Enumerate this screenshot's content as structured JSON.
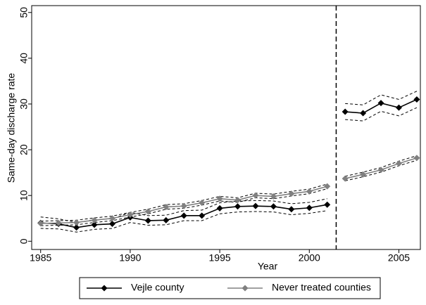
{
  "chart_data": {
    "type": "line",
    "xlabel": "Year",
    "ylabel": "Same-day discharge rate",
    "x": [
      1985,
      1986,
      1987,
      1988,
      1989,
      1990,
      1991,
      1992,
      1993,
      1994,
      1995,
      1996,
      1997,
      1998,
      1999,
      2000,
      2001,
      2002,
      2003,
      2004,
      2005,
      2006
    ],
    "series": [
      {
        "name": "Vejle county",
        "color": "#000000",
        "ci_color": "#000000",
        "values": [
          4.0,
          3.8,
          3.0,
          3.6,
          3.8,
          5.2,
          4.5,
          4.6,
          5.6,
          5.6,
          7.2,
          7.6,
          7.7,
          7.6,
          7.0,
          7.3,
          8.0,
          28.3,
          28.0,
          30.2,
          29.2,
          31.0
        ],
        "lower": [
          2.8,
          2.7,
          2.0,
          2.6,
          2.8,
          4.1,
          3.5,
          3.6,
          4.5,
          4.5,
          6.0,
          6.4,
          6.5,
          6.4,
          5.8,
          6.1,
          6.7,
          26.6,
          26.3,
          28.4,
          27.4,
          29.2
        ],
        "upper": [
          5.3,
          4.9,
          4.1,
          4.7,
          4.9,
          6.3,
          5.6,
          5.7,
          6.7,
          6.8,
          8.4,
          8.8,
          8.9,
          8.8,
          8.2,
          8.5,
          9.3,
          30.1,
          29.8,
          32.0,
          31.0,
          32.8
        ]
      },
      {
        "name": "Never treated counties",
        "color": "#808080",
        "ci_color": "#000000",
        "values": [
          3.9,
          4.0,
          4.1,
          4.6,
          5.0,
          5.8,
          6.5,
          7.5,
          7.7,
          8.4,
          9.3,
          9.0,
          10.0,
          9.8,
          10.4,
          10.9,
          12.0,
          13.7,
          14.6,
          15.6,
          17.0,
          18.2
        ],
        "lower": [
          3.4,
          3.5,
          3.6,
          4.1,
          4.5,
          5.3,
          6.0,
          7.0,
          7.2,
          7.9,
          8.8,
          8.5,
          9.5,
          9.3,
          9.9,
          10.4,
          11.5,
          13.2,
          14.1,
          15.1,
          16.5,
          17.7
        ],
        "upper": [
          4.4,
          4.5,
          4.6,
          5.1,
          5.5,
          6.3,
          7.0,
          8.0,
          8.2,
          8.9,
          9.8,
          9.5,
          10.5,
          10.3,
          10.9,
          11.4,
          12.5,
          14.2,
          15.1,
          16.1,
          17.5,
          18.7
        ]
      }
    ],
    "vline": 2001.5,
    "xlim": [
      1984.5,
      2006.2
    ],
    "xticks": [
      1985,
      1990,
      1995,
      2000,
      2005
    ],
    "ylim": [
      -1.8,
      51.5
    ],
    "yticks": [
      0,
      10,
      20,
      30,
      40,
      50
    ],
    "legend": "bottom"
  }
}
